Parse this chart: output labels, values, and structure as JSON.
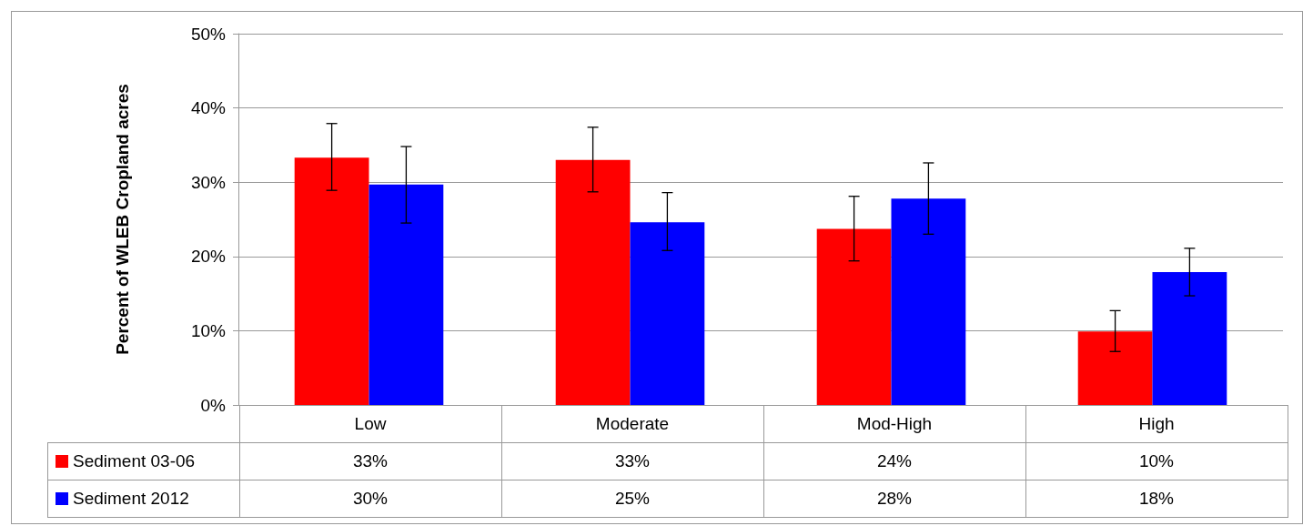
{
  "chart_data": {
    "type": "bar",
    "ylabel": "Percent of WLEB Cropland acres",
    "categories": [
      "Low",
      "Moderate",
      "Mod-High",
      "High"
    ],
    "series": [
      {
        "name": "Sediment 03-06",
        "color": "#ff0000",
        "values": [
          33.3,
          33.0,
          23.7,
          9.9
        ],
        "errors": [
          [
            28.9,
            37.9
          ],
          [
            28.7,
            37.4
          ],
          [
            19.4,
            28.1
          ],
          [
            7.2,
            12.7
          ]
        ],
        "value_labels": [
          "33%",
          "33%",
          "24%",
          "10%"
        ]
      },
      {
        "name": "Sediment 2012",
        "color": "#0000ff",
        "values": [
          29.7,
          24.6,
          27.8,
          17.9
        ],
        "errors": [
          [
            24.5,
            34.8
          ],
          [
            20.8,
            28.6
          ],
          [
            23.0,
            32.6
          ],
          [
            14.7,
            21.1
          ]
        ],
        "value_labels": [
          "30%",
          "25%",
          "28%",
          "18%"
        ]
      }
    ],
    "ylim": [
      0,
      50
    ],
    "yticks": [
      {
        "value": 0,
        "label": "0%"
      },
      {
        "value": 10,
        "label": "10%"
      },
      {
        "value": 20,
        "label": "20%"
      },
      {
        "value": 30,
        "label": "30%"
      },
      {
        "value": 40,
        "label": "40%"
      },
      {
        "value": 50,
        "label": "50%"
      }
    ],
    "grid": "y",
    "legend": "bottom left"
  }
}
